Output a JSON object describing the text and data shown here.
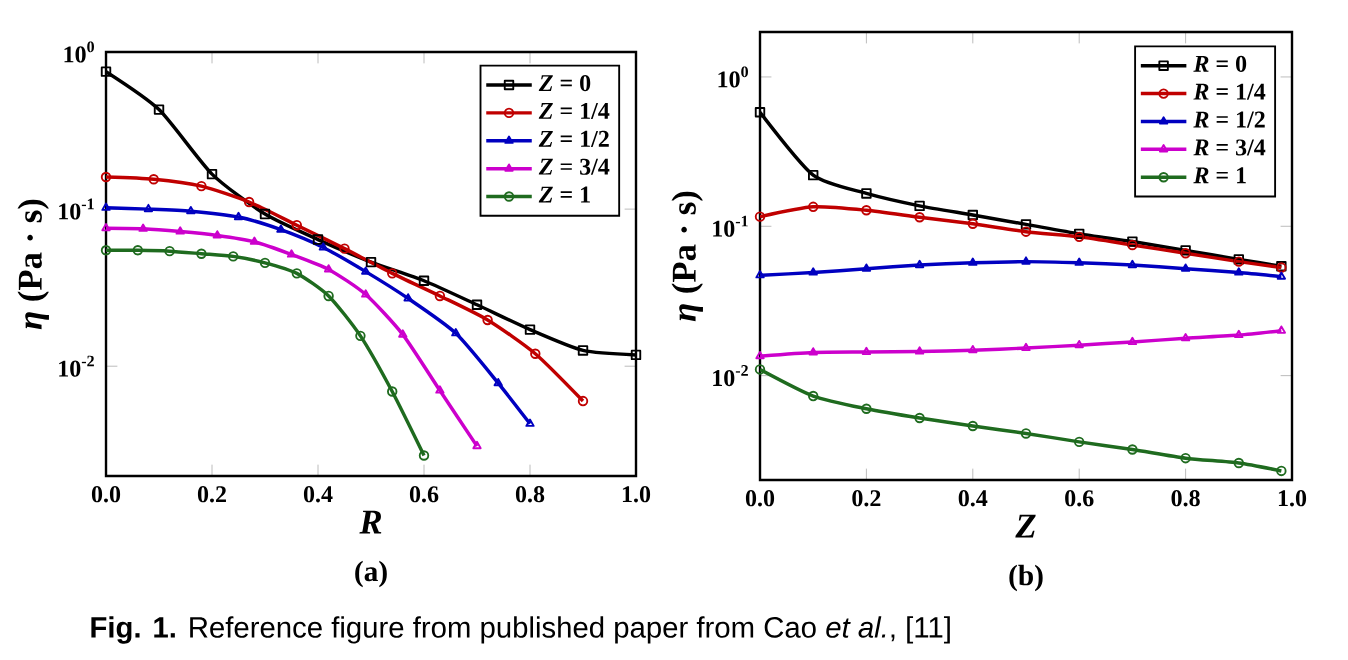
{
  "chart_data": [
    {
      "type": "line",
      "xlabel": "*R*",
      "ylabel": "*η* (Pa · s)",
      "log": "y",
      "legend": "top right",
      "marker": "circle",
      "line_style": "solid",
      "xlim": [
        0,
        1
      ],
      "ylim": [
        0.002,
        1
      ],
      "xticks": [
        {
          "value": 0,
          "label": "0.0"
        },
        {
          "value": 0.2,
          "label": "0.2"
        },
        {
          "value": 0.4,
          "label": "0.4"
        },
        {
          "value": 0.6,
          "label": "0.6"
        },
        {
          "value": 0.8,
          "label": "0.8"
        },
        {
          "value": 1,
          "label": "1.0"
        }
      ],
      "yticks": [
        {
          "value": 1,
          "label": "10$^{0}$"
        },
        {
          "value": 0.1,
          "label": "10$^{-1}$"
        },
        {
          "value": 0.01,
          "label": "10$^{-2}$"
        }
      ],
      "annotations": [
        "(a)",
        "**Fig. 1.** Reference figure from published paper from Cao *et al.*, [11]"
      ],
      "series": [
        {
          "name": "*Z* = 0",
          "color": "#000000",
          "marker": "square",
          "x": [
            0,
            0.1,
            0.2,
            0.3,
            0.4,
            0.5,
            0.6,
            0.7,
            0.8,
            0.9,
            1.0
          ],
          "values": [
            0.75,
            0.43,
            0.167,
            0.093,
            0.064,
            0.046,
            0.035,
            0.0246,
            0.0171,
            0.0126,
            0.0118
          ]
        },
        {
          "name": "*Z* = 1/4",
          "color": "#c00000",
          "x": [
            0,
            0.09,
            0.18,
            0.27,
            0.36,
            0.45,
            0.54,
            0.63,
            0.72,
            0.81,
            0.9
          ],
          "values": [
            0.16,
            0.155,
            0.14,
            0.111,
            0.079,
            0.056,
            0.039,
            0.028,
            0.0197,
            0.012,
            0.006
          ]
        },
        {
          "name": "*Z* = 1/2",
          "color": "#0000c0",
          "marker": "triangle",
          "x": [
            0,
            0.08,
            0.16,
            0.25,
            0.33,
            0.41,
            0.49,
            0.57,
            0.66,
            0.74,
            0.8
          ],
          "values": [
            0.102,
            0.1,
            0.097,
            0.089,
            0.074,
            0.057,
            0.04,
            0.027,
            0.0162,
            0.0078,
            0.0043
          ]
        },
        {
          "name": "*Z* = 3/4",
          "color": "#cc00cc",
          "marker": "triangle",
          "x": [
            0,
            0.07,
            0.14,
            0.21,
            0.28,
            0.35,
            0.42,
            0.49,
            0.56,
            0.63,
            0.7
          ],
          "values": [
            0.0756,
            0.075,
            0.072,
            0.068,
            0.062,
            0.0514,
            0.0413,
            0.0286,
            0.0159,
            0.007,
            0.0031
          ]
        },
        {
          "name": "*Z* = 1",
          "color": "#1f6b1f",
          "x": [
            0,
            0.06,
            0.12,
            0.18,
            0.24,
            0.3,
            0.36,
            0.42,
            0.48,
            0.54,
            0.6
          ],
          "values": [
            0.0547,
            0.0547,
            0.054,
            0.052,
            0.05,
            0.0455,
            0.039,
            0.028,
            0.0156,
            0.0069,
            0.0027
          ]
        }
      ]
    },
    {
      "type": "line",
      "xlabel": "*Z*",
      "ylabel": "*η* (Pa · s)",
      "log": "y",
      "legend": "top right",
      "marker": "circle",
      "line_style": "solid",
      "xlim": [
        0,
        1
      ],
      "ylim": [
        0.002,
        2
      ],
      "xticks": [
        {
          "value": 0,
          "label": "0.0"
        },
        {
          "value": 0.2,
          "label": "0.2"
        },
        {
          "value": 0.4,
          "label": "0.4"
        },
        {
          "value": 0.6,
          "label": "0.6"
        },
        {
          "value": 0.8,
          "label": "0.8"
        },
        {
          "value": 1,
          "label": "1.0"
        }
      ],
      "yticks": [
        {
          "value": 1,
          "label": "10$^{0}$"
        },
        {
          "value": 0.1,
          "label": "10$^{-1}$"
        },
        {
          "value": 0.01,
          "label": "10$^{-2}$"
        }
      ],
      "annotations": [
        "(b)"
      ],
      "series": [
        {
          "name": "*R* = 0",
          "color": "#000000",
          "marker": "square",
          "x": [
            0,
            0.1,
            0.2,
            0.3,
            0.4,
            0.5,
            0.6,
            0.7,
            0.8,
            0.9,
            0.98
          ],
          "values": [
            0.58,
            0.22,
            0.166,
            0.137,
            0.119,
            0.103,
            0.089,
            0.079,
            0.069,
            0.06,
            0.054
          ]
        },
        {
          "name": "*R* = 1/4",
          "color": "#c00000",
          "x": [
            0,
            0.1,
            0.2,
            0.3,
            0.4,
            0.5,
            0.6,
            0.7,
            0.8,
            0.9,
            0.98
          ],
          "values": [
            0.116,
            0.135,
            0.128,
            0.115,
            0.104,
            0.092,
            0.085,
            0.075,
            0.066,
            0.058,
            0.053
          ]
        },
        {
          "name": "*R* = 1/2",
          "color": "#0000c0",
          "marker": "triangle",
          "x": [
            0,
            0.1,
            0.2,
            0.3,
            0.4,
            0.5,
            0.6,
            0.7,
            0.8,
            0.9,
            0.98
          ],
          "values": [
            0.047,
            0.049,
            0.052,
            0.055,
            0.057,
            0.058,
            0.057,
            0.055,
            0.052,
            0.049,
            0.046
          ]
        },
        {
          "name": "*R* = 3/4",
          "color": "#cc00cc",
          "marker": "triangle",
          "x": [
            0,
            0.1,
            0.2,
            0.3,
            0.4,
            0.5,
            0.6,
            0.7,
            0.8,
            0.9,
            0.98
          ],
          "values": [
            0.0135,
            0.0143,
            0.0144,
            0.0145,
            0.0148,
            0.0153,
            0.016,
            0.0168,
            0.0178,
            0.0187,
            0.02
          ]
        },
        {
          "name": "*R* = 1",
          "color": "#1f6b1f",
          "x": [
            0,
            0.1,
            0.2,
            0.3,
            0.4,
            0.5,
            0.6,
            0.7,
            0.8,
            0.9,
            0.98
          ],
          "values": [
            0.011,
            0.0073,
            0.006,
            0.0052,
            0.0046,
            0.0041,
            0.0036,
            0.0032,
            0.0028,
            0.0026,
            0.0023
          ]
        }
      ]
    }
  ]
}
